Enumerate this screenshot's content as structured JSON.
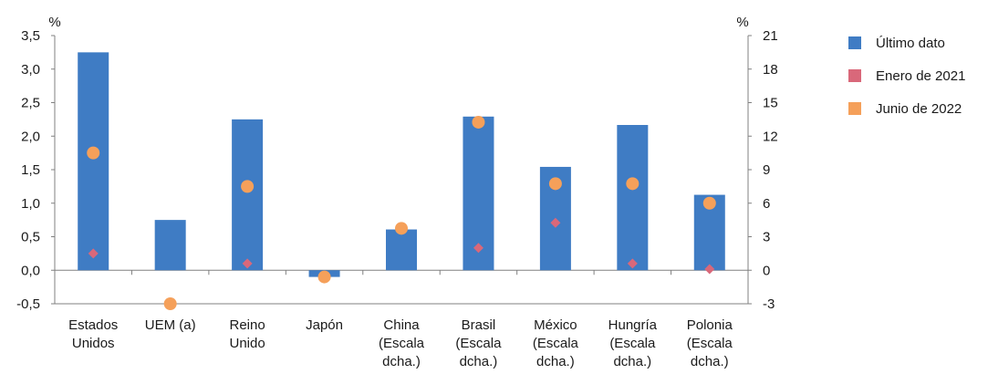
{
  "chart_data": {
    "type": "bar",
    "units_left": "%",
    "units_right": "%",
    "categories": [
      [
        "Estados",
        "Unidos"
      ],
      [
        "UEM (a)"
      ],
      [
        "Reino",
        "Unido"
      ],
      [
        "Japón"
      ],
      [
        "China",
        "(Escala",
        "dcha.)"
      ],
      [
        "Brasil",
        "(Escala",
        "dcha.)"
      ],
      [
        "México",
        "(Escala",
        "dcha.)"
      ],
      [
        "Hungría",
        "(Escala",
        "dcha.)"
      ],
      [
        "Polonia",
        "(Escala",
        "dcha.)"
      ]
    ],
    "axis_assignment": [
      "left",
      "left",
      "left",
      "left",
      "right",
      "right",
      "right",
      "right",
      "right"
    ],
    "y_left": {
      "min": -0.5,
      "max": 3.5,
      "ticks": [
        "-0,5",
        "0,0",
        "0,5",
        "1,0",
        "1,5",
        "2,0",
        "2,5",
        "3,0",
        "3,5"
      ]
    },
    "y_right": {
      "min": -3,
      "max": 21,
      "ticks": [
        "-3",
        "0",
        "3",
        "6",
        "9",
        "12",
        "15",
        "18",
        "21"
      ]
    },
    "series": [
      {
        "name": "Último dato",
        "type": "bar",
        "color": "#3f7cc4",
        "values": [
          3.25,
          0.75,
          2.25,
          -0.1,
          3.65,
          13.75,
          9.25,
          13.0,
          6.75
        ]
      },
      {
        "name": "Enero de 2021",
        "type": "diamond",
        "color": "#d9687a",
        "values": [
          0.25,
          null,
          0.1,
          null,
          3.65,
          2.0,
          4.25,
          0.6,
          0.1
        ]
      },
      {
        "name": "Junio de 2022",
        "type": "circle",
        "color": "#f5a05a",
        "values": [
          1.75,
          -0.5,
          1.25,
          -0.1,
          3.75,
          13.25,
          7.75,
          7.75,
          6.0
        ]
      }
    ],
    "legend": [
      "Último dato",
      "Enero de 2021",
      "Junio de 2022"
    ],
    "legend_position": "right"
  }
}
